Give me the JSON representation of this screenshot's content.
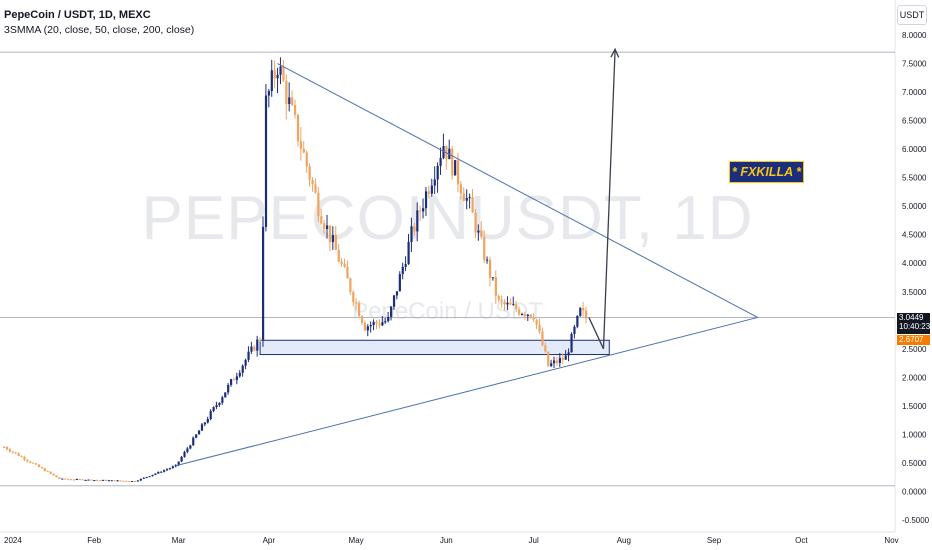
{
  "header": {
    "title": "PepeCoin / USDT, 1D, MEXC",
    "indicator": "3SMMA (20, close, 50, close, 200, close)"
  },
  "watermark": {
    "symbol": "PEPECOINUSDT, 1D",
    "name": "PepeCoin / USDT"
  },
  "unit_label": "USDT",
  "badge": "* FXKILLA *",
  "price_tags": {
    "last_price": "3.0449",
    "countdown": "10:40:23",
    "smma_value": "2.6707"
  },
  "colors": {
    "up": "#1c2e7a",
    "down": "#f0a35e",
    "trendline": "#4a6fb0",
    "support_zone_fill": "#e3ebfa",
    "support_zone_border": "#1c2e7a",
    "badge_bg": "#1c2e7a",
    "badge_text": "#f5c518",
    "smma_tag": "#f57c00"
  },
  "chart_data": {
    "type": "candlestick",
    "title": "PepeCoin / USDT, 1D, MEXC",
    "ylabel": "USDT",
    "ylim": [
      -0.5,
      8.0
    ],
    "y_ticks": [
      "8.0000",
      "7.5000",
      "7.0000",
      "6.5000",
      "6.0000",
      "5.5000",
      "5.0000",
      "4.5000",
      "4.0000",
      "3.5000",
      "3.0000",
      "2.5000",
      "2.0000",
      "1.5000",
      "1.0000",
      "0.5000",
      "0.0000",
      "-0.5000"
    ],
    "x_ticks": [
      "2024",
      "Feb",
      "Mar",
      "Apr",
      "May",
      "Jun",
      "Jul",
      "Aug",
      "Sep",
      "Oct",
      "Nov"
    ],
    "last_price": 3.0449,
    "smma_value": 2.6707,
    "horizontal_lines": [
      7.7,
      3.05,
      0.1
    ],
    "support_zone": {
      "from": "2024-03-29",
      "to": "2024-07-27",
      "low": 2.4,
      "high": 2.65
    },
    "trendlines": [
      {
        "name": "upper",
        "from": {
          "date": "2024-04-04",
          "price": 7.5
        },
        "to": {
          "date": "2024-09-16",
          "price": 3.05
        }
      },
      {
        "name": "lower",
        "from": {
          "date": "2024-02-29",
          "price": 0.45
        },
        "to": {
          "date": "2024-09-16",
          "price": 3.05
        }
      }
    ],
    "projection_arrow": [
      {
        "date": "2024-07-20",
        "price": 3.05
      },
      {
        "date": "2024-07-25",
        "price": 2.5
      },
      {
        "date": "2024-07-29",
        "price": 7.75
      }
    ],
    "key_points": [
      {
        "date": "2024-01-01",
        "price": 0.78
      },
      {
        "date": "2024-01-20",
        "price": 0.22
      },
      {
        "date": "2024-02-15",
        "price": 0.18
      },
      {
        "date": "2024-02-29",
        "price": 0.45
      },
      {
        "date": "2024-03-15",
        "price": 1.6
      },
      {
        "date": "2024-03-29",
        "price": 2.7
      },
      {
        "date": "2024-03-31",
        "price": 6.8
      },
      {
        "date": "2024-04-04",
        "price": 7.5
      },
      {
        "date": "2024-04-18",
        "price": 5.0
      },
      {
        "date": "2024-05-04",
        "price": 2.9
      },
      {
        "date": "2024-05-12",
        "price": 3.0
      },
      {
        "date": "2024-05-20",
        "price": 4.5
      },
      {
        "date": "2024-05-31",
        "price": 6.1
      },
      {
        "date": "2024-06-09",
        "price": 5.0
      },
      {
        "date": "2024-06-19",
        "price": 3.3
      },
      {
        "date": "2024-07-01",
        "price": 3.1
      },
      {
        "date": "2024-07-06",
        "price": 2.2
      },
      {
        "date": "2024-07-12",
        "price": 2.35
      },
      {
        "date": "2024-07-17",
        "price": 3.15
      },
      {
        "date": "2024-07-19",
        "price": 3.04
      }
    ]
  }
}
